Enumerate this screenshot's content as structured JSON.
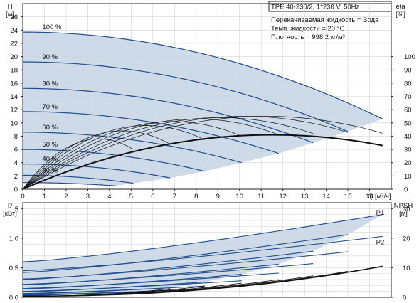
{
  "header": {
    "model": "TPE 40-230/2, 1*230 V, 50Hz",
    "info": [
      "Перекачиваемая жидкость = Вода",
      "Темп. жидкости = 20 °C",
      "Плотность = 998.2 кг/м³"
    ]
  },
  "colors": {
    "curve": "#1f4e8c",
    "fill": "#c9d6e6",
    "eta": "#111111",
    "npsh": "#111111",
    "grid": "#d3d3d3"
  },
  "chart_data": [
    {
      "type": "line",
      "xlabel": "Q [м³/ч]",
      "ylabel": "H [м]",
      "y2label": "eta [%]",
      "xlim": [
        0,
        17
      ],
      "ylim": [
        0,
        28
      ],
      "y2lim": [
        0,
        140
      ],
      "grid": true,
      "x_ticks": [
        0,
        1,
        2,
        3,
        4,
        5,
        6,
        7,
        8,
        9,
        10,
        11,
        12,
        13,
        14,
        15,
        16
      ],
      "y_ticks": [
        0,
        2,
        4,
        6,
        8,
        10,
        12,
        14,
        16,
        18,
        20,
        22,
        24,
        26
      ],
      "y2_ticks": [
        0,
        10,
        20,
        30,
        40,
        50,
        60,
        70,
        80,
        90,
        100
      ],
      "head_series": [
        {
          "name": "100 %",
          "h0": 23.7,
          "qmax": 16.6,
          "hend": 10.6
        },
        {
          "name": "90 %",
          "h0": 19.2,
          "qmax": 15.0,
          "hend": 8.7
        },
        {
          "name": "80 %",
          "h0": 15.2,
          "qmax": 13.4,
          "hend": 7.0
        },
        {
          "name": "70 %",
          "h0": 11.7,
          "qmax": 11.8,
          "hend": 5.4
        },
        {
          "name": "60 %",
          "h0": 8.6,
          "qmax": 10.1,
          "hend": 4.0
        },
        {
          "name": "50 %",
          "h0": 6.0,
          "qmax": 8.4,
          "hend": 2.7
        },
        {
          "name": "40 %",
          "h0": 3.8,
          "qmax": 6.8,
          "hend": 1.7
        },
        {
          "name": "30 %",
          "h0": 2.1,
          "qmax": 5.1,
          "hend": 0.9
        },
        {
          "name": "",
          "h0": 1.0,
          "qmax": 4.3,
          "hend": 0.5
        }
      ],
      "eta_series": [
        {
          "qmax": 16.6,
          "peak_q": 11.2,
          "peak": 55
        },
        {
          "qmax": 15.0,
          "peak_q": 10.2,
          "peak": 55
        },
        {
          "qmax": 13.4,
          "peak_q": 9.1,
          "peak": 54
        },
        {
          "qmax": 11.8,
          "peak_q": 8.0,
          "peak": 53
        },
        {
          "qmax": 10.1,
          "peak_q": 6.9,
          "peak": 51
        },
        {
          "qmax": 8.4,
          "peak_q": 5.7,
          "peak": 48
        },
        {
          "qmax": 6.8,
          "peak_q": 4.6,
          "peak": 44
        },
        {
          "qmax": 5.1,
          "peak_q": 3.5,
          "peak": 38
        }
      ],
      "eta_bold": {
        "qmax": 16.6,
        "peak_q": 11.5,
        "peak": 41
      }
    },
    {
      "type": "line",
      "xlabel": "",
      "ylabel": "P [кВт]",
      "y2label": "NPSH [м]",
      "xlim": [
        0,
        17
      ],
      "ylim": [
        0,
        1.6
      ],
      "y2lim": [
        0,
        32
      ],
      "grid": true,
      "y_ticks": [
        "0.0",
        "0.5",
        "1.0",
        "1.5"
      ],
      "y2_ticks": [
        0,
        10,
        20,
        30
      ],
      "series_labels": [
        "P1",
        "P2"
      ],
      "power_series": [
        {
          "p0": 0.6,
          "qmax": 16.6,
          "pend": 1.4
        },
        {
          "p0": 0.42,
          "qmax": 15.0,
          "pend": 1.06
        },
        {
          "p0": 0.3,
          "qmax": 13.4,
          "pend": 0.78
        },
        {
          "p0": 0.21,
          "qmax": 11.8,
          "pend": 0.56
        },
        {
          "p0": 0.14,
          "qmax": 10.1,
          "pend": 0.39
        },
        {
          "p0": 0.09,
          "qmax": 8.4,
          "pend": 0.26
        },
        {
          "p0": 0.055,
          "qmax": 6.8,
          "pend": 0.16
        },
        {
          "p0": 0.03,
          "qmax": 5.1,
          "pend": 0.09
        }
      ],
      "power_p2_series": [
        {
          "p0": 0.45,
          "qmax": 16.6,
          "pend": 1.03
        },
        {
          "p0": 0.31,
          "qmax": 15.0,
          "pend": 0.77
        },
        {
          "p0": 0.22,
          "qmax": 13.4,
          "pend": 0.57
        },
        {
          "p0": 0.15,
          "qmax": 11.8,
          "pend": 0.41
        },
        {
          "p0": 0.1,
          "qmax": 10.1,
          "pend": 0.28
        },
        {
          "p0": 0.065,
          "qmax": 8.4,
          "pend": 0.19
        },
        {
          "p0": 0.04,
          "qmax": 6.8,
          "pend": 0.12
        }
      ],
      "npsh_series": [
        {
          "qmax": 16.6,
          "nend": 10.5
        },
        {
          "qmax": 15.0,
          "nend": 8.8
        },
        {
          "qmax": 13.4,
          "nend": 7.3
        },
        {
          "qmax": 11.8,
          "nend": 6.0
        },
        {
          "qmax": 10.1,
          "nend": 4.8
        },
        {
          "qmax": 8.4,
          "nend": 3.8
        },
        {
          "qmax": 6.8,
          "nend": 2.9
        }
      ]
    }
  ]
}
